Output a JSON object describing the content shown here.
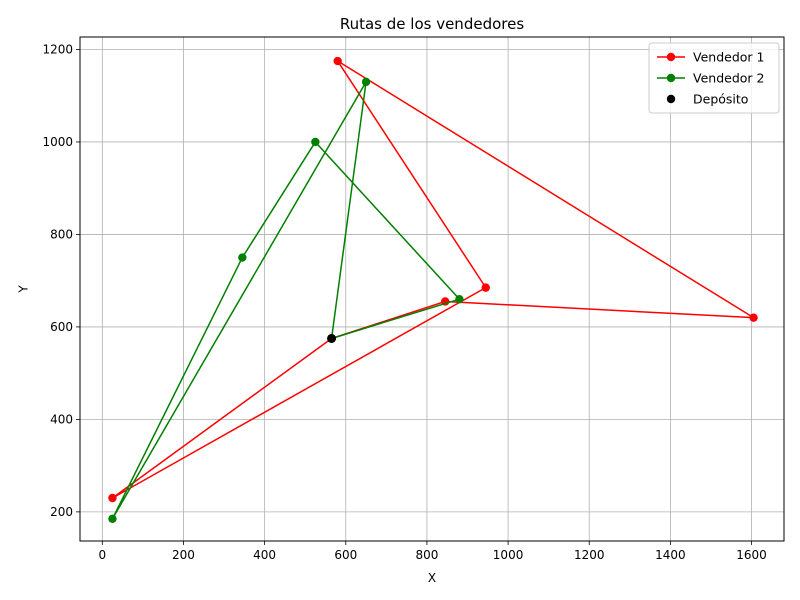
{
  "chart_data": {
    "type": "line",
    "title": "Rutas de los vendedores",
    "xlabel": "X",
    "ylabel": "Y",
    "xlim": [
      -55,
      1680
    ],
    "ylim": [
      137,
      1227
    ],
    "xticks": [
      0,
      200,
      400,
      600,
      800,
      1000,
      1200,
      1400,
      1600
    ],
    "yticks": [
      200,
      400,
      600,
      800,
      1000,
      1200
    ],
    "grid": true,
    "legend_position": "top-right",
    "series": [
      {
        "name": "Vendedor 1",
        "color": "#ff0000",
        "marker": "circle",
        "x": [
          565,
          845,
          1605,
          580,
          945,
          25,
          565
        ],
        "y": [
          575,
          655,
          620,
          1175,
          685,
          230,
          575
        ]
      },
      {
        "name": "Vendedor 2",
        "color": "#008000",
        "marker": "circle",
        "x": [
          565,
          650,
          25,
          345,
          525,
          880,
          565
        ],
        "y": [
          575,
          1130,
          185,
          750,
          1000,
          660,
          575
        ]
      }
    ],
    "depot": {
      "name": "Depósito",
      "color": "#000000",
      "x": 565,
      "y": 575
    }
  }
}
